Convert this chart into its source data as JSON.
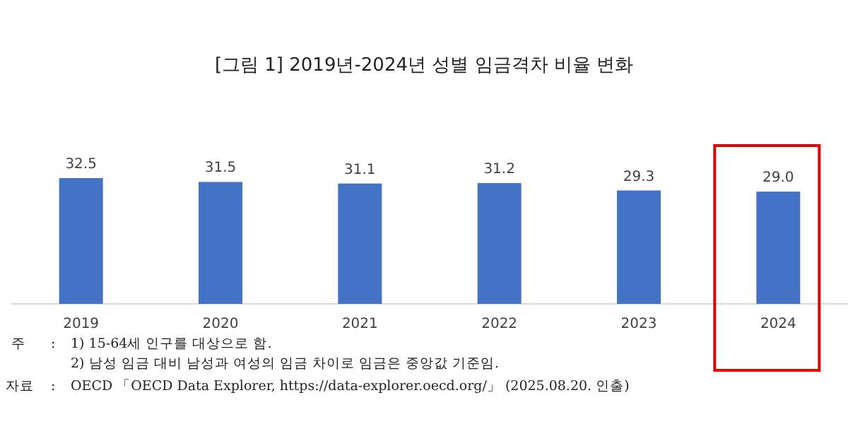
{
  "chart_data": {
    "type": "bar",
    "title": "[그림 1] 2019년-2024년 성별 임금격차 비율 변화",
    "categories": [
      "2019",
      "2020",
      "2021",
      "2022",
      "2023",
      "2024"
    ],
    "values": [
      32.5,
      31.5,
      31.1,
      31.2,
      29.3,
      29.0
    ],
    "value_labels": [
      "32.5",
      "31.5",
      "31.1",
      "31.2",
      "29.3",
      "29.0"
    ],
    "color": "#4472c4",
    "annotations": [
      "주",
      ":",
      "1) 15-64세 인구를 대상으로 함.",
      "2) 남성 임금 대비 남성과 여성의 임금 차이로 임금은 중앙값 기준임.",
      "자료",
      ":",
      "OECD 「OECD Data Explorer, https://data-explorer.oecd.org/」 (2025.08.20. 인출)"
    ]
  }
}
